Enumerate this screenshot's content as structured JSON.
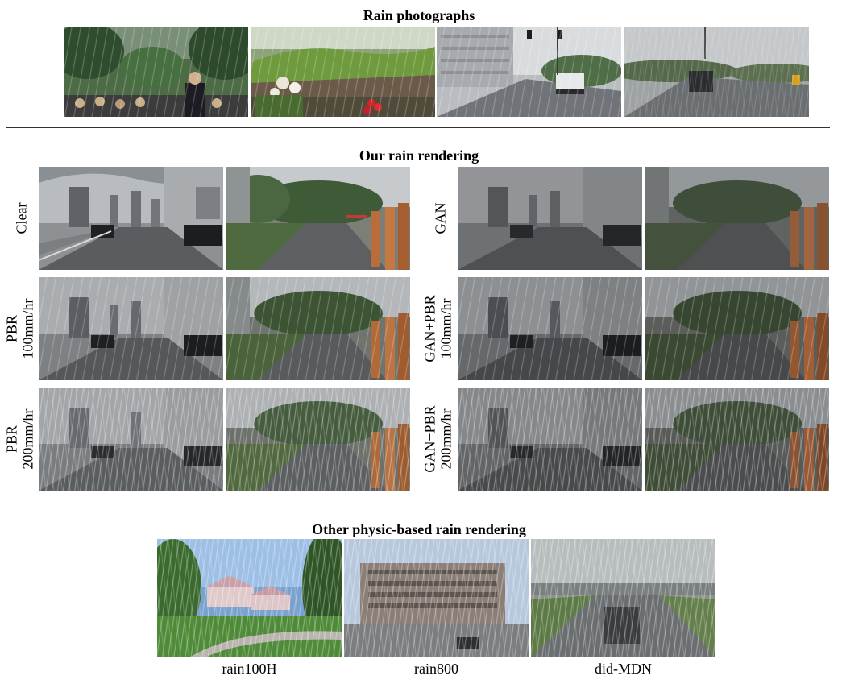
{
  "sections": {
    "rain_photographs": "Rain photographs",
    "our_rendering": "Our rain rendering",
    "other_rendering": "Other physic-based rain rendering"
  },
  "row_labels": {
    "clear": [
      "Clear"
    ],
    "pbr100": [
      "PBR",
      "100mm/hr"
    ],
    "pbr200": [
      "PBR",
      "200mm/hr"
    ],
    "gan": [
      "GAN"
    ],
    "ganpbr100": [
      "GAN+PBR",
      "100mm/hr"
    ],
    "ganpbr200": [
      "GAN+PBR",
      "200mm/hr"
    ]
  },
  "captions": [
    "rain100H",
    "rain800",
    "did-MDN"
  ]
}
